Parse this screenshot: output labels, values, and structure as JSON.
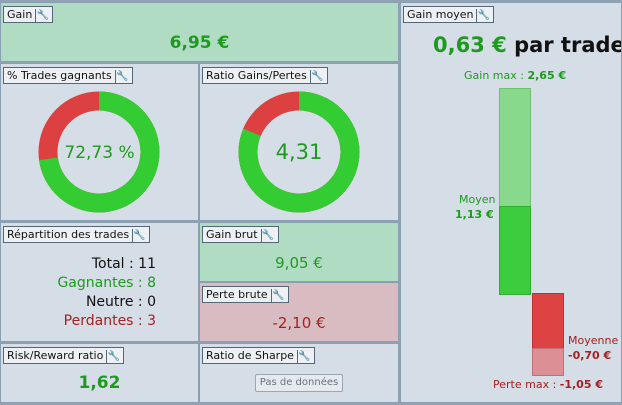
{
  "colors": {
    "win": "#33cc33",
    "loss": "#dd4040",
    "green_text": "#1e9a1e",
    "red_text": "#a52020"
  },
  "gain": {
    "title": "Gain",
    "value": "6,95 €"
  },
  "win_rate": {
    "title": "% Trades gagnants",
    "value": "72,73 %",
    "percent": 72.73
  },
  "gain_loss_ratio": {
    "title": "Ratio Gains/Pertes",
    "value": "4,31",
    "win_share": 81.2
  },
  "distribution": {
    "title": "Répartition des trades",
    "total": "Total : 11",
    "winners": "Gagnantes : 8",
    "neutral": "Neutre : 0",
    "losers": "Perdantes : 3"
  },
  "gross_gain": {
    "title": "Gain brut",
    "value": "9,05 €"
  },
  "gross_loss": {
    "title": "Perte brute",
    "value": "-2,10 €"
  },
  "risk_reward": {
    "title": "Risk/Reward ratio",
    "value": "1,62"
  },
  "sharpe": {
    "title": "Ratio de Sharpe",
    "no_data": "Pas de données"
  },
  "avg_gain": {
    "title": "Gain moyen",
    "headline_value": "0,63 €",
    "headline_suffix": "par trade",
    "max_gain_label": "Gain max :",
    "max_gain_value": "2,65 €",
    "avg_win_label": "Moyen",
    "avg_win_value": "1,13 €",
    "avg_loss_label": "Moyenne",
    "avg_loss_value": "-0,70 €",
    "max_loss_label": "Perte max :",
    "max_loss_value": "-1,05 €"
  }
}
